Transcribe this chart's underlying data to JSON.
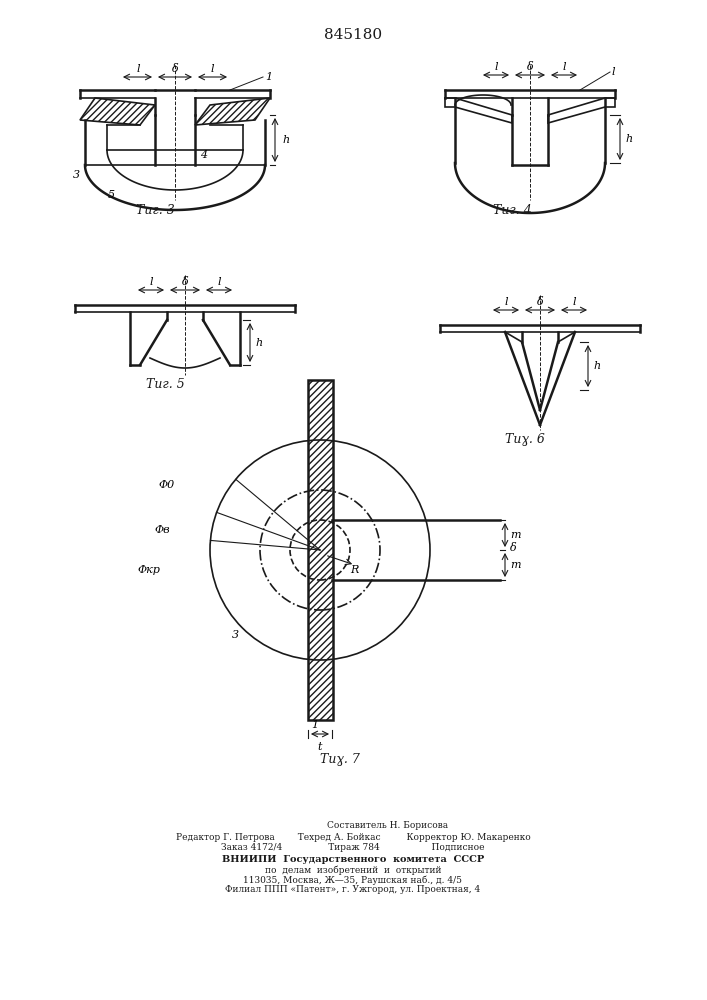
{
  "title": "845180",
  "background_color": "#ffffff",
  "line_color": "#1a1a1a",
  "hatch_color": "#1a1a1a",
  "fig3_label": "Τиг. 3",
  "fig4_label": "Τиг. 4",
  "fig5_label": "Τиг. 5",
  "fig6_label": "Τиг. 6",
  "fig7_label": "Τиг. 7",
  "footer_lines": [
    "                        Составитель Н. Борисова",
    "Редактор Г. Петрова        Техред А. Бойкас         Корректор Ю. Макаренко",
    "Заказ 4172/4                Тираж 784                  Подписное",
    "ВНИИПИ  Государственного  комитета  СССР",
    "по  делам  изобретений  и  открытий",
    "113035, Москва, Ж—35, Раушская наб., д. 4/5",
    "Филиал ППП «Патент», г. Ужгород, ул. Проектная, 4"
  ]
}
